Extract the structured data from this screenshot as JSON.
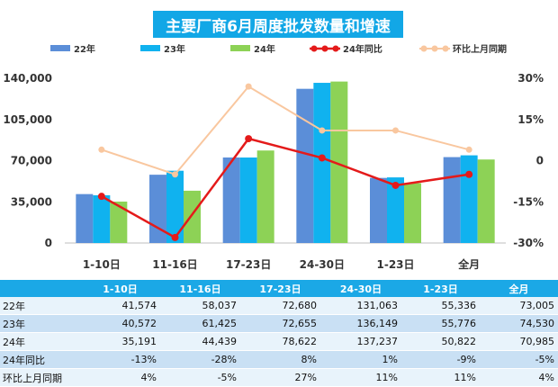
{
  "title": "主要厂商6月周度批发数量和增速",
  "legend": [
    {
      "label": "22年",
      "color": "#5b8ed8"
    },
    {
      "label": "23年",
      "color": "#10b2ef"
    },
    {
      "label": "24年",
      "color": "#8dd256"
    },
    {
      "label": "24年同比",
      "color": "#e41a1a"
    },
    {
      "label": "环比上月同期",
      "color": "#f9c79f"
    }
  ],
  "chart_data": {
    "type": "bar",
    "categories": [
      "1-10日",
      "11-16日",
      "17-23日",
      "24-30日",
      "1-23日",
      "全月"
    ],
    "series": [
      {
        "name": "22年",
        "values": [
          41574,
          58037,
          72680,
          131063,
          55336,
          73005
        ],
        "color": "#5b8ed8"
      },
      {
        "name": "23年",
        "values": [
          40572,
          61425,
          72655,
          136149,
          55776,
          74530
        ],
        "color": "#10b2ef"
      },
      {
        "name": "24年",
        "values": [
          35191,
          44439,
          78622,
          137237,
          50822,
          70985
        ],
        "color": "#8dd256"
      }
    ],
    "line_series": [
      {
        "name": "24年同比",
        "values": [
          -13,
          -28,
          8,
          1,
          -9,
          -5
        ],
        "color": "#e41a1a",
        "axis": "right"
      },
      {
        "name": "环比上月同期",
        "values": [
          4,
          -5,
          27,
          11,
          11,
          4
        ],
        "color": "#f9c79f",
        "axis": "right"
      }
    ],
    "ylim": [
      0,
      140000
    ],
    "yticks": [
      "0",
      "35,000",
      "70,000",
      "105,000",
      "140,000"
    ],
    "y2lim": [
      -30,
      30
    ],
    "y2ticks": [
      "-30%",
      "-15%",
      "0",
      "15%",
      "30%"
    ]
  },
  "table": {
    "headers": [
      "",
      "1-10日",
      "11-16日",
      "17-23日",
      "24-30日",
      "1-23日",
      "全月"
    ],
    "rows": [
      {
        "label": "22年",
        "cells": [
          "41,574",
          "58,037",
          "72,680",
          "131,063",
          "55,336",
          "73,005"
        ]
      },
      {
        "label": "23年",
        "cells": [
          "40,572",
          "61,425",
          "72,655",
          "136,149",
          "55,776",
          "74,530"
        ]
      },
      {
        "label": "24年",
        "cells": [
          "35,191",
          "44,439",
          "78,622",
          "137,237",
          "50,822",
          "70,985"
        ]
      },
      {
        "label": "24年同比",
        "cells": [
          "-13%",
          "-28%",
          "8%",
          "1%",
          "-9%",
          "-5%"
        ]
      },
      {
        "label": "环比上月同期",
        "cells": [
          "4%",
          "-5%",
          "27%",
          "11%",
          "11%",
          "4%"
        ]
      }
    ]
  }
}
